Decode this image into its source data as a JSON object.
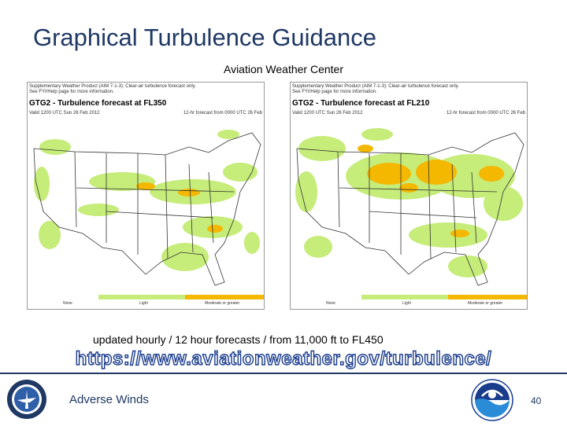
{
  "slide": {
    "title": "Graphical Turbulence Guidance",
    "subtitle": "Aviation Weather Center",
    "caption": "updated hourly  / 12 hour forecasts / from 11,000 ft to FL450",
    "url": "https://www.aviationweather.gov/turbulence/",
    "footer_text": "Adverse Winds",
    "page_number": "40"
  },
  "maps": [
    {
      "notice_line1": "Supplementary Weather Product (AIM 7-1-3): Clear-air turbulence forecast only.",
      "notice_line2": "See FYI/Help page for more information.",
      "title": "GTG2 - Turbulence forecast at FL350",
      "valid": "Valid 1200 UTC Sun 26 Feb 2012",
      "forecast": "12-hr forecast from 0000 UTC 26 Feb",
      "legend": [
        "None",
        "Light",
        "Moderate or greater"
      ]
    },
    {
      "notice_line1": "Supplementary Weather Product (AIM 7-1-3): Clear-air turbulence forecast only.",
      "notice_line2": "See FYI/Help page for more information.",
      "title": "GTG2 - Turbulence forecast at FL210",
      "valid": "Valid 1200 UTC Sun 26 Feb 2012",
      "forecast": "12-hr forecast from 0000 UTC 26 Feb",
      "legend": [
        "None",
        "Light",
        "Moderate or greater"
      ]
    }
  ],
  "colors": {
    "title": "#1f3864",
    "light_turbulence": "#c6ec7a",
    "moderate_turbulence": "#f5b800",
    "url_outline": "#1a3c8c"
  },
  "logos": {
    "left": "FAA seal",
    "right": "NOAA emblem"
  }
}
